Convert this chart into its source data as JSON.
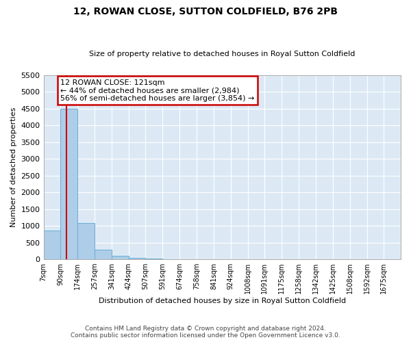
{
  "title_line1": "12, ROWAN CLOSE, SUTTON COLDFIELD, B76 2PB",
  "title_line2": "Size of property relative to detached houses in Royal Sutton Coldfield",
  "xlabel": "Distribution of detached houses by size in Royal Sutton Coldfield",
  "ylabel": "Number of detached properties",
  "footer_line1": "Contains HM Land Registry data © Crown copyright and database right 2024.",
  "footer_line2": "Contains public sector information licensed under the Open Government Licence v3.0.",
  "annotation_line1": "12 ROWAN CLOSE: 121sqm",
  "annotation_line2": "← 44% of detached houses are smaller (2,984)",
  "annotation_line3": "56% of semi-detached houses are larger (3,854) →",
  "bar_color": "#aecde8",
  "bar_edge_color": "#6aaed6",
  "grid_color": "#ffffff",
  "bg_color": "#dce9f5",
  "vline_color": "#cc0000",
  "annotation_box_color": "#cc0000",
  "ylim": [
    0,
    5500
  ],
  "yticks": [
    0,
    500,
    1000,
    1500,
    2000,
    2500,
    3000,
    3500,
    4000,
    4500,
    5000,
    5500
  ],
  "categories": [
    "7sqm",
    "90sqm",
    "174sqm",
    "257sqm",
    "341sqm",
    "424sqm",
    "507sqm",
    "591sqm",
    "674sqm",
    "758sqm",
    "841sqm",
    "924sqm",
    "1008sqm",
    "1091sqm",
    "1175sqm",
    "1258sqm",
    "1342sqm",
    "1425sqm",
    "1508sqm",
    "1592sqm",
    "1675sqm"
  ],
  "values": [
    850,
    4500,
    1075,
    280,
    100,
    50,
    20,
    10,
    8,
    6,
    5,
    4,
    3,
    3,
    2,
    2,
    2,
    1,
    1,
    1,
    1
  ],
  "bin_edges": [
    7,
    90,
    174,
    257,
    341,
    424,
    507,
    591,
    674,
    758,
    841,
    924,
    1008,
    1091,
    1175,
    1258,
    1342,
    1425,
    1508,
    1592,
    1675,
    1758
  ],
  "vline_x": 121
}
